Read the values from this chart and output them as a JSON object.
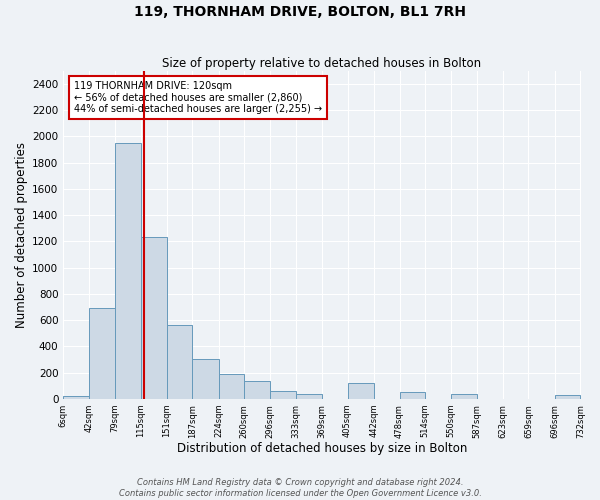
{
  "title": "119, THORNHAM DRIVE, BOLTON, BL1 7RH",
  "subtitle": "Size of property relative to detached houses in Bolton",
  "xlabel": "Distribution of detached houses by size in Bolton",
  "ylabel": "Number of detached properties",
  "bar_color": "#cdd9e5",
  "bar_edge_color": "#6699bb",
  "annotation_box_color": "#cc0000",
  "vline_color": "#cc0000",
  "annotation_text": "119 THORNHAM DRIVE: 120sqm\n← 56% of detached houses are smaller (2,860)\n44% of semi-detached houses are larger (2,255) →",
  "property_size": 120,
  "bin_edges": [
    6,
    42,
    79,
    115,
    151,
    187,
    224,
    260,
    296,
    333,
    369,
    405,
    442,
    478,
    514,
    550,
    587,
    623,
    659,
    696,
    732
  ],
  "bar_heights": [
    20,
    690,
    1950,
    1230,
    565,
    305,
    190,
    135,
    60,
    40,
    0,
    125,
    0,
    55,
    0,
    40,
    0,
    0,
    0,
    30
  ],
  "ylim": [
    0,
    2500
  ],
  "yticks": [
    0,
    200,
    400,
    600,
    800,
    1000,
    1200,
    1400,
    1600,
    1800,
    2000,
    2200,
    2400
  ],
  "tick_labels": [
    "6sqm",
    "42sqm",
    "79sqm",
    "115sqm",
    "151sqm",
    "187sqm",
    "224sqm",
    "260sqm",
    "296sqm",
    "333sqm",
    "369sqm",
    "405sqm",
    "442sqm",
    "478sqm",
    "514sqm",
    "550sqm",
    "587sqm",
    "623sqm",
    "659sqm",
    "696sqm",
    "732sqm"
  ],
  "footnote": "Contains HM Land Registry data © Crown copyright and database right 2024.\nContains public sector information licensed under the Open Government Licence v3.0.",
  "background_color": "#eef2f6",
  "plot_bg_color": "#eef2f6",
  "grid_color": "#ffffff"
}
